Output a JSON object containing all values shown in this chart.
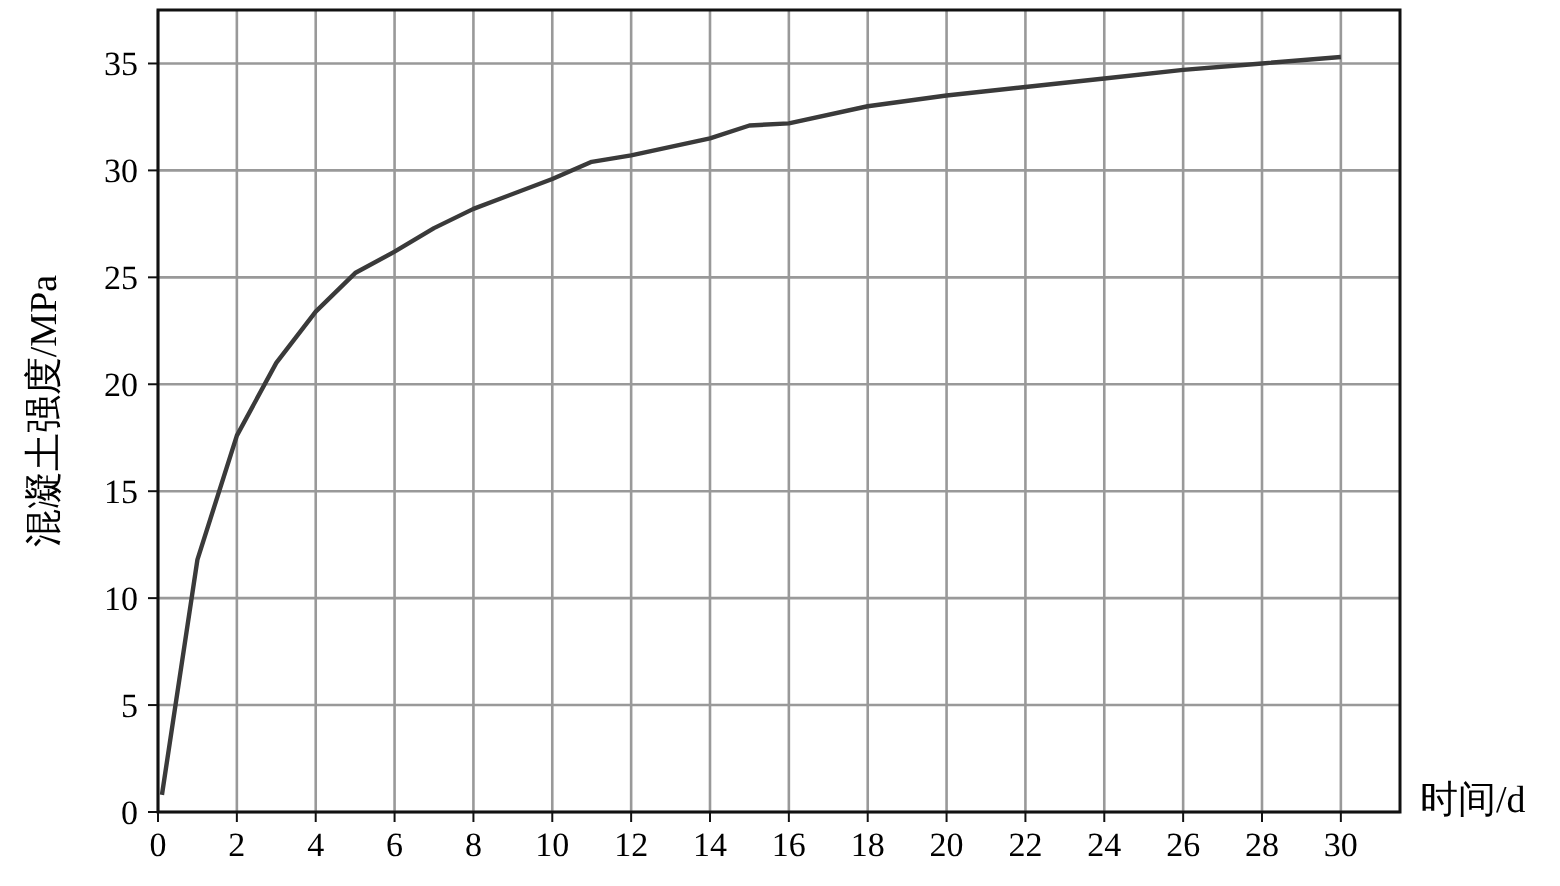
{
  "chart_data": {
    "type": "line",
    "xlabel": "时间/d",
    "ylabel": "混凝土强度/MPa",
    "x": [
      0.1,
      1,
      2,
      3,
      4,
      5,
      6,
      7,
      8,
      10,
      11,
      12,
      14,
      15,
      16,
      18,
      20,
      22,
      24,
      26,
      28,
      30
    ],
    "series": [
      {
        "color": "#3a3a3a",
        "values": [
          0.8,
          11.8,
          17.6,
          21.0,
          23.4,
          25.2,
          26.2,
          27.3,
          28.2,
          29.6,
          30.4,
          30.7,
          31.5,
          32.1,
          32.2,
          33.0,
          33.5,
          33.9,
          34.3,
          34.7,
          35.0,
          35.3
        ]
      }
    ],
    "xlim": [
      0,
      31.5
    ],
    "ylim": [
      0,
      37.5
    ],
    "xticks": [
      0,
      2,
      4,
      6,
      8,
      10,
      12,
      14,
      16,
      18,
      20,
      22,
      24,
      26,
      28,
      30
    ],
    "yticks": [
      0,
      5,
      10,
      15,
      20,
      25,
      30,
      35
    ],
    "grid": true,
    "marker": "none",
    "line_style": "solid"
  }
}
